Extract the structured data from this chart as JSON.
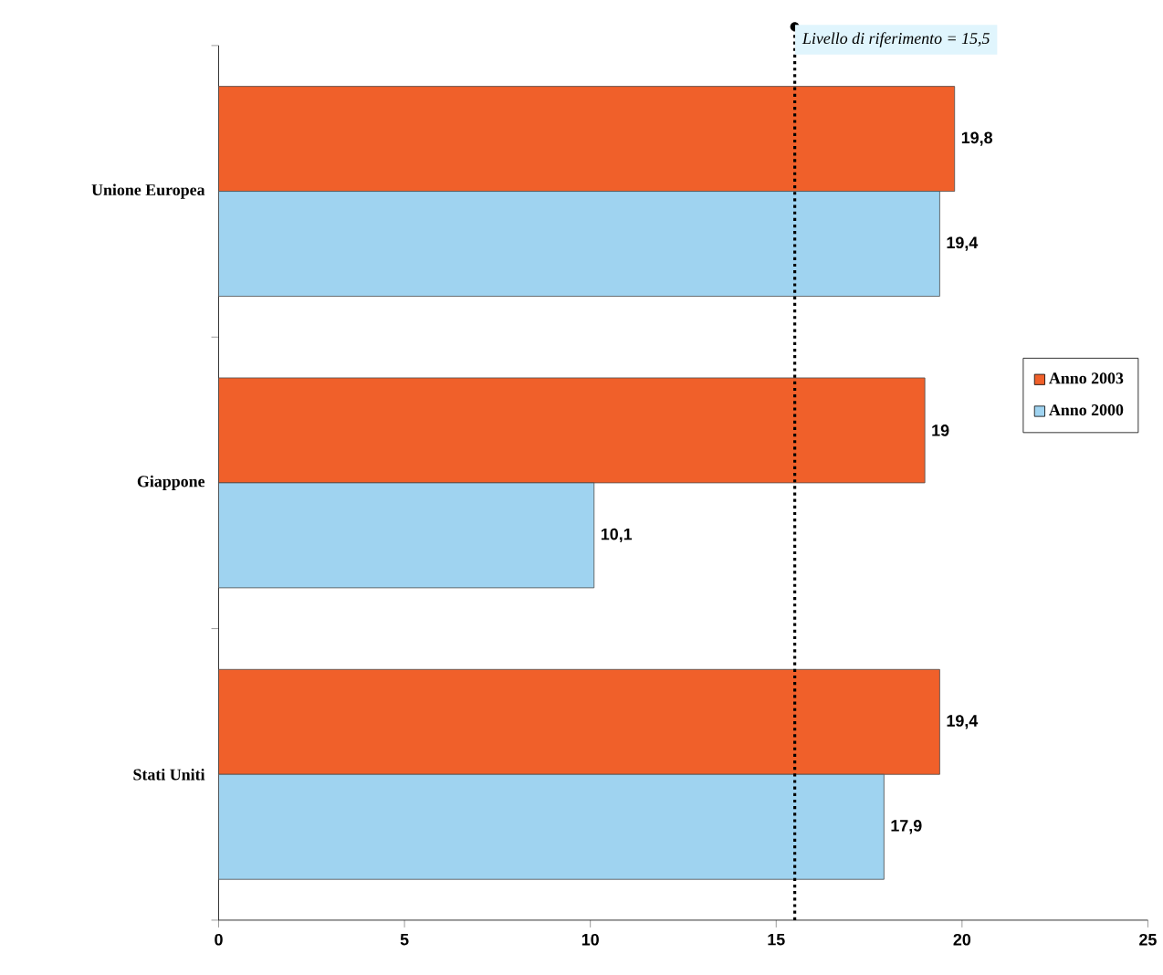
{
  "chart_data": {
    "type": "bar",
    "orientation": "horizontal",
    "categories": [
      "Unione Europea",
      "Giappone",
      "Stati Uniti"
    ],
    "series": [
      {
        "name": "Anno 2003",
        "color": "#f0602a",
        "values": [
          19.8,
          19,
          19.4
        ],
        "value_labels": [
          "19,8",
          "19",
          "19,4"
        ]
      },
      {
        "name": "Anno 2000",
        "color": "#9fd3f0",
        "values": [
          19.4,
          10.1,
          17.9
        ],
        "value_labels": [
          "19,4",
          "10,1",
          "17,9"
        ]
      }
    ],
    "xlim": [
      0,
      25
    ],
    "xticks": [
      0,
      5,
      10,
      15,
      20,
      25
    ],
    "ref_lines": [
      {
        "axis": "x",
        "value": 15.5,
        "label": "Livello di riferimento = 15,5",
        "line_style": "dotted",
        "color": "#000000"
      }
    ],
    "legend": "right",
    "grid": false
  }
}
